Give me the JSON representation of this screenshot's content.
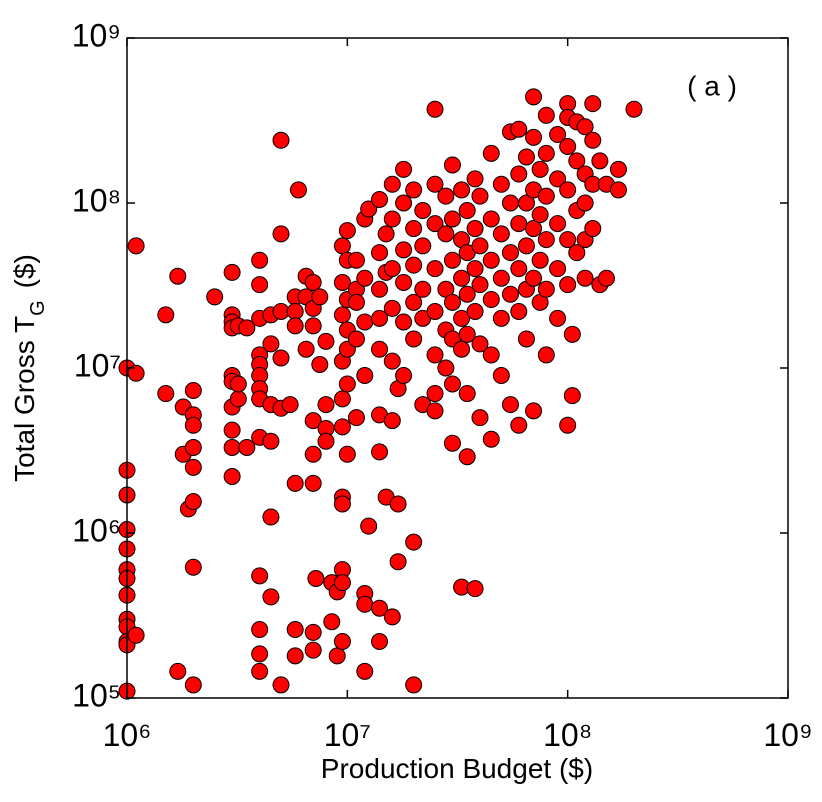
{
  "chart_data": {
    "type": "scatter",
    "xlabel": "Production Budget ($)",
    "ylabel": {
      "text": "Total Gross T",
      "subscript": "G",
      "unit": "($)"
    },
    "annotation": "( a )",
    "xscale": "log",
    "yscale": "log",
    "color": "#ff0000",
    "edgecolor": "#000000",
    "xlim": [
      1000000.0,
      1000000000.0
    ],
    "ylim": [
      100000.0,
      1000000000.0
    ],
    "xticks": [
      {
        "value": 1000000.0,
        "label": "10⁶"
      },
      {
        "value": 10000000.0,
        "label": "10⁷"
      },
      {
        "value": 100000000.0,
        "label": "10⁸"
      },
      {
        "value": 1000000000.0,
        "label": "10⁹"
      }
    ],
    "yticks": [
      {
        "value": 100000.0,
        "label": "10⁵"
      },
      {
        "value": 1000000.0,
        "label": "10⁶"
      },
      {
        "value": 10000000.0,
        "label": "10⁷"
      },
      {
        "value": 100000000.0,
        "label": "10⁸"
      },
      {
        "value": 1000000000.0,
        "label": "10⁹"
      }
    ],
    "x": [
      1000000.0,
      1000000.0,
      1000000.0,
      1000000.0,
      1000000.0,
      1000000.0,
      1000000.0,
      1000000.0,
      1000000.0,
      1000000.0,
      1000000.0,
      1000000.0,
      1000000.0,
      1100000.0,
      1100000.0,
      1100000.0,
      1500000.0,
      1500000.0,
      1700000.0,
      1700000.0,
      1800000.0,
      1800000.0,
      1900000.0,
      2000000.0,
      2000000.0,
      2000000.0,
      2000000.0,
      2000000.0,
      2000000.0,
      2000000.0,
      2000000.0,
      2500000.0,
      3000000.0,
      3000000.0,
      3000000.0,
      3000000.0,
      3000000.0,
      3000000.0,
      3000000.0,
      3000000.0,
      3000000.0,
      3000000.0,
      3200000.0,
      3200000.0,
      3200000.0,
      3500000.0,
      3500000.0,
      4000000.0,
      4000000.0,
      4000000.0,
      4000000.0,
      4000000.0,
      4000000.0,
      4000000.0,
      4000000.0,
      4000000.0,
      4000000.0,
      4000000.0,
      4000000.0,
      4000000.0,
      4500000.0,
      4500000.0,
      4500000.0,
      4500000.0,
      4500000.0,
      4500000.0,
      5000000.0,
      5000000.0,
      5000000.0,
      5000000.0,
      5000000.0,
      5000000.0,
      5500000.0,
      5800000.0,
      5800000.0,
      5800000.0,
      5800000.0,
      5800000.0,
      5800000.0,
      6000000.0,
      6500000.0,
      6500000.0,
      6500000.0,
      7000000.0,
      7000000.0,
      7000000.0,
      7000000.0,
      7000000.0,
      7000000.0,
      7000000.0,
      7000000.0,
      7200000.0,
      7500000.0,
      7500000.0,
      8000000.0,
      8000000.0,
      8000000.0,
      8000000.0,
      8500000.0,
      8500000.0,
      9000000.0,
      9000000.0,
      9500000.0,
      9500000.0,
      9500000.0,
      9500000.0,
      9500000.0,
      9500000.0,
      9500000.0,
      9500000.0,
      9500000.0,
      9500000.0,
      9500000.0,
      10000000.0,
      10000000.0,
      10000000.0,
      10000000.0,
      10000000.0,
      10000000.0,
      10000000.0,
      11000000.0,
      11000000.0,
      11000000.0,
      11000000.0,
      11000000.0,
      12000000.0,
      12000000.0,
      12000000.0,
      12000000.0,
      12000000.0,
      12000000.0,
      12000000.0,
      12500000.0,
      12500000.0,
      14000000.0,
      14000000.0,
      14000000.0,
      14000000.0,
      14000000.0,
      14000000.0,
      14000000.0,
      14000000.0,
      14000000.0,
      15000000.0,
      15000000.0,
      15000000.0,
      16000000.0,
      16000000.0,
      16000000.0,
      16000000.0,
      16000000.0,
      16000000.0,
      16000000.0,
      17000000.0,
      17000000.0,
      17000000.0,
      18000000.0,
      18000000.0,
      18000000.0,
      18000000.0,
      18000000.0,
      18000000.0,
      20000000.0,
      20000000.0,
      20000000.0,
      20000000.0,
      20000000.0,
      20000000.0,
      20000000.0,
      22000000.0,
      22000000.0,
      22000000.0,
      22000000.0,
      22000000.0,
      25000000.0,
      25000000.0,
      25000000.0,
      25000000.0,
      25000000.0,
      25000000.0,
      25000000.0,
      25000000.0,
      28000000.0,
      28000000.0,
      28000000.0,
      28000000.0,
      28000000.0,
      30000000.0,
      30000000.0,
      30000000.0,
      30000000.0,
      30000000.0,
      30000000.0,
      30000000.0,
      33000000.0,
      33000000.0,
      33000000.0,
      33000000.0,
      33000000.0,
      33000000.0,
      35000000.0,
      35000000.0,
      35000000.0,
      35000000.0,
      35000000.0,
      35000000.0,
      38000000.0,
      38000000.0,
      38000000.0,
      38000000.0,
      38000000.0,
      40000000.0,
      40000000.0,
      40000000.0,
      40000000.0,
      40000000.0,
      45000000.0,
      45000000.0,
      45000000.0,
      45000000.0,
      45000000.0,
      45000000.0,
      50000000.0,
      50000000.0,
      50000000.0,
      50000000.0,
      50000000.0,
      55000000.0,
      55000000.0,
      55000000.0,
      55000000.0,
      55000000.0,
      60000000.0,
      60000000.0,
      60000000.0,
      60000000.0,
      60000000.0,
      60000000.0,
      65000000.0,
      65000000.0,
      65000000.0,
      65000000.0,
      65000000.0,
      70000000.0,
      70000000.0,
      70000000.0,
      70000000.0,
      70000000.0,
      70000000.0,
      75000000.0,
      75000000.0,
      75000000.0,
      75000000.0,
      80000000.0,
      80000000.0,
      80000000.0,
      80000000.0,
      80000000.0,
      80000000.0,
      90000000.0,
      90000000.0,
      90000000.0,
      90000000.0,
      90000000.0,
      100000000.0,
      100000000.0,
      100000000.0,
      100000000.0,
      100000000.0,
      100000000.0,
      100000000.0,
      105000000.0,
      105000000.0,
      110000000.0,
      110000000.0,
      110000000.0,
      110000000.0,
      120000000.0,
      120000000.0,
      120000000.0,
      120000000.0,
      120000000.0,
      130000000.0,
      130000000.0,
      130000000.0,
      130000000.0,
      140000000.0,
      140000000.0,
      150000000.0,
      150000000.0,
      170000000.0,
      170000000.0,
      200000000.0
    ],
    "values": [
      10000000.0,
      2400000.0,
      1700000.0,
      1050000.0,
      800000.0,
      600000.0,
      530000.0,
      420000.0,
      300000.0,
      270000.0,
      220000.0,
      210000.0,
      110000.0,
      9300000.0,
      55000000.0,
      240000.0,
      7000000.0,
      21000000.0,
      36000000.0,
      145000.0,
      5800000.0,
      3000000.0,
      1400000.0,
      7300000.0,
      5200000.0,
      4500000.0,
      3300000.0,
      2500000.0,
      1550000.0,
      620000.0,
      120000.0,
      27000000.0,
      38000000.0,
      21000000.0,
      19000000.0,
      17500000.0,
      9000000.0,
      8300000.0,
      5800000.0,
      4200000.0,
      3300000.0,
      2200000.0,
      6500000.0,
      8000000.0,
      18000000.0,
      17500000.0,
      3300000.0,
      45000000.0,
      32000000.0,
      20000000.0,
      12000000.0,
      10500000.0,
      9000000.0,
      7500000.0,
      6500000.0,
      3800000.0,
      550000.0,
      260000.0,
      185000.0,
      145000.0,
      21000000.0,
      14000000.0,
      6000000.0,
      3600000.0,
      1250000.0,
      410000.0,
      240000000.0,
      65000000.0,
      22000000.0,
      11500000.0,
      5700000.0,
      120000.0,
      6000000.0,
      27000000.0,
      22000000.0,
      18000000.0,
      2000000.0,
      260000.0,
      180000.0,
      120000000.0,
      36000000.0,
      27000000.0,
      13000000.0,
      33000000.0,
      23000000.0,
      18000000.0,
      4800000.0,
      3000000.0,
      2000000.0,
      250000.0,
      195000.0,
      530000.0,
      10500000.0,
      27000000.0,
      14500000.0,
      6000000.0,
      4300000.0,
      3600000.0,
      290000.0,
      500000.0,
      180000.0,
      440000.0,
      55000000.0,
      33000000.0,
      21000000.0,
      11000000.0,
      6500000.0,
      4400000.0,
      1650000.0,
      1500000.0,
      600000.0,
      500000.0,
      220000.0,
      68000000.0,
      45000000.0,
      26000000.0,
      17000000.0,
      13000000.0,
      8000000.0,
      3000000.0,
      45000000.0,
      30000000.0,
      25000000.0,
      15000000.0,
      5000000.0,
      80000000.0,
      35000000.0,
      19000000.0,
      9000000.0,
      430000.0,
      370000.0,
      145000.0,
      1100000.0,
      92000000.0,
      105000000.0,
      50000000.0,
      30000000.0,
      20000000.0,
      13000000.0,
      5200000.0,
      3100000.0,
      220000.0,
      350000.0,
      1650000.0,
      65000000.0,
      38000000.0,
      130000000.0,
      80000000.0,
      40000000.0,
      23000000.0,
      11000000.0,
      4800000.0,
      310000.0,
      7500000.0,
      1500000.0,
      670000.0,
      160000000.0,
      100000000.0,
      52000000.0,
      33000000.0,
      19000000.0,
      9000000.0,
      120000.0,
      880000.0,
      42000000.0,
      25000000.0,
      15000000.0,
      70000000.0,
      120000000.0,
      90000000.0,
      55000000.0,
      30000000.0,
      6000000.0,
      20000000.0,
      370000000.0,
      130000000.0,
      75000000.0,
      40000000.0,
      22000000.0,
      12000000.0,
      7000000.0,
      5500000.0,
      110000000.0,
      65000000.0,
      30000000.0,
      17000000.0,
      10000000.0,
      170000000.0,
      80000000.0,
      45000000.0,
      25000000.0,
      15000000.0,
      8000000.0,
      3500000.0,
      120000000.0,
      60000000.0,
      35000000.0,
      20000000.0,
      13000000.0,
      470000.0,
      90000000.0,
      50000000.0,
      28000000.0,
      16000000.0,
      7000000.0,
      2900000.0,
      140000000.0,
      70000000.0,
      40000000.0,
      22000000.0,
      460000.0,
      110000000.0,
      55000000.0,
      32000000.0,
      14000000.0,
      5000000.0,
      200000000.0,
      80000000.0,
      45000000.0,
      26000000.0,
      12000000.0,
      3700000.0,
      130000000.0,
      65000000.0,
      35000000.0,
      20000000.0,
      9000000.0,
      270000000.0,
      100000000.0,
      50000000.0,
      28000000.0,
      6000000.0,
      280000000.0,
      150000000.0,
      75000000.0,
      40000000.0,
      22000000.0,
      4500000.0,
      190000000.0,
      100000000.0,
      55000000.0,
      30000000.0,
      15000000.0,
      440000000.0,
      250000000.0,
      120000000.0,
      70000000.0,
      35000000.0,
      5500000.0,
      160000000.0,
      85000000.0,
      45000000.0,
      25000000.0,
      340000000.0,
      200000000.0,
      110000000.0,
      60000000.0,
      30000000.0,
      12000000.0,
      260000000.0,
      140000000.0,
      75000000.0,
      40000000.0,
      20000000.0,
      400000000.0,
      330000000.0,
      220000000.0,
      120000000.0,
      60000000.0,
      32000000.0,
      4500000.0,
      6800000.0,
      16000000.0,
      310000000.0,
      180000000.0,
      90000000.0,
      50000000.0,
      290000000.0,
      150000000.0,
      100000000.0,
      60000000.0,
      35000000.0,
      400000000.0,
      240000000.0,
      130000000.0,
      70000000.0,
      180000000.0,
      32000000.0,
      130000000.0,
      35000000.0,
      160000000.0,
      120000000.0,
      370000000.0
    ]
  }
}
